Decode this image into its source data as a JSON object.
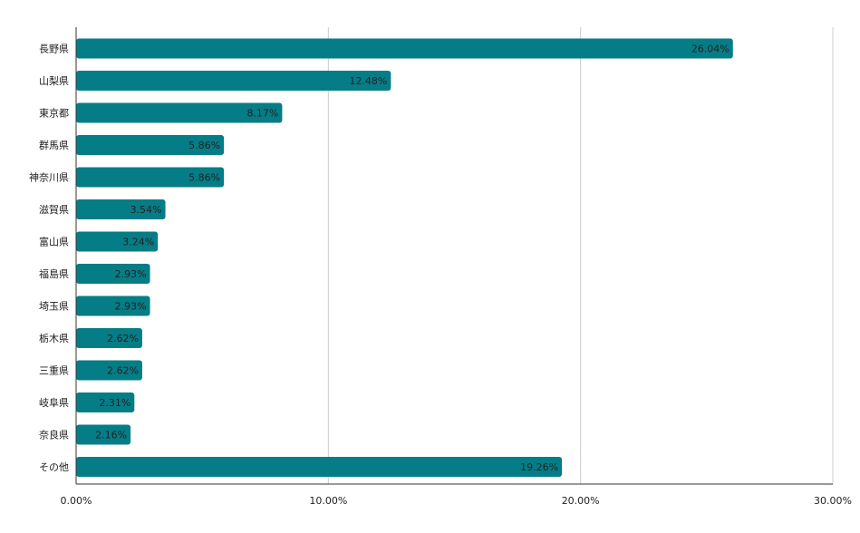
{
  "chart_data": {
    "type": "bar",
    "orientation": "horizontal",
    "title": "",
    "xlabel": "",
    "ylabel": "",
    "xlim": [
      0,
      30
    ],
    "grid": true,
    "legend": "none",
    "bar_color": "#057d86",
    "categories": [
      "長野県",
      "山梨県",
      "東京都",
      "群馬県",
      "神奈川県",
      "滋賀県",
      "富山県",
      "福島県",
      "埼玉県",
      "栃木県",
      "三重県",
      "岐阜県",
      "奈良県",
      "その他"
    ],
    "values": [
      26.04,
      12.48,
      8.17,
      5.86,
      5.86,
      3.54,
      3.24,
      2.93,
      2.93,
      2.62,
      2.62,
      2.31,
      2.16,
      19.26
    ],
    "data_labels": [
      "26.04%",
      "12.48%",
      "8.17%",
      "5.86%",
      "5.86%",
      "3.54%",
      "3.24%",
      "2.93%",
      "2.93%",
      "2.62%",
      "2.62%",
      "2.31%",
      "2.16%",
      "19.26%"
    ],
    "x_ticks": [
      0,
      10,
      20,
      30
    ],
    "x_tick_labels": [
      "0.00%",
      "10.00%",
      "20.00%",
      "30.00%"
    ]
  }
}
